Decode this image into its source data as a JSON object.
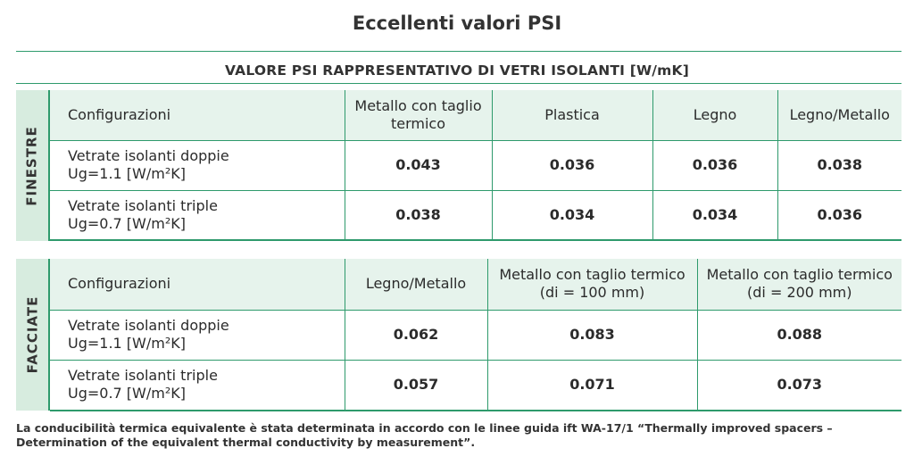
{
  "title": "Eccellenti valori PSI",
  "subtitle": "VALORE PSI RAPPRESENTATIVO DI VETRI ISOLANTI [W/mK]",
  "finestre": {
    "side_label": "FINESTRE",
    "headers": [
      "Configurazioni",
      "Metallo con taglio termico",
      "Plastica",
      "Legno",
      "Legno/Metallo"
    ],
    "rows": [
      {
        "config": [
          "Vetrate isolanti doppie",
          "Ug=1.1 [W/m²K]"
        ],
        "values": [
          "0.043",
          "0.036",
          "0.036",
          "0.038"
        ]
      },
      {
        "config": [
          "Vetrate isolanti triple",
          "Ug=0.7 [W/m²K]"
        ],
        "values": [
          "0.038",
          "0.034",
          "0.034",
          "0.036"
        ]
      }
    ]
  },
  "facciate": {
    "side_label": "FACCIATE",
    "headers": [
      "Configurazioni",
      "Legno/Metallo",
      "Metallo con taglio termico (di = 100 mm)",
      "Metallo con taglio termico (di = 200 mm)"
    ],
    "rows": [
      {
        "config": [
          "Vetrate isolanti doppie",
          "Ug=1.1 [W/m²K]"
        ],
        "values": [
          "0.062",
          "0.083",
          "0.088"
        ]
      },
      {
        "config": [
          "Vetrate isolanti triple",
          "Ug=0.7 [W/m²K]"
        ],
        "values": [
          "0.057",
          "0.071",
          "0.073"
        ]
      }
    ]
  },
  "footnote": "La conducibilità termica equivalente è stata determinata in accordo con le linee guida ift WA-17/1 “Thermally improved spacers – Determination of the equivalent thermal conductivity by measurement”.",
  "colors": {
    "accent": "#2e9a6c",
    "side_fill": "#d7ecdf",
    "header_fill": "#e6f3ec"
  }
}
